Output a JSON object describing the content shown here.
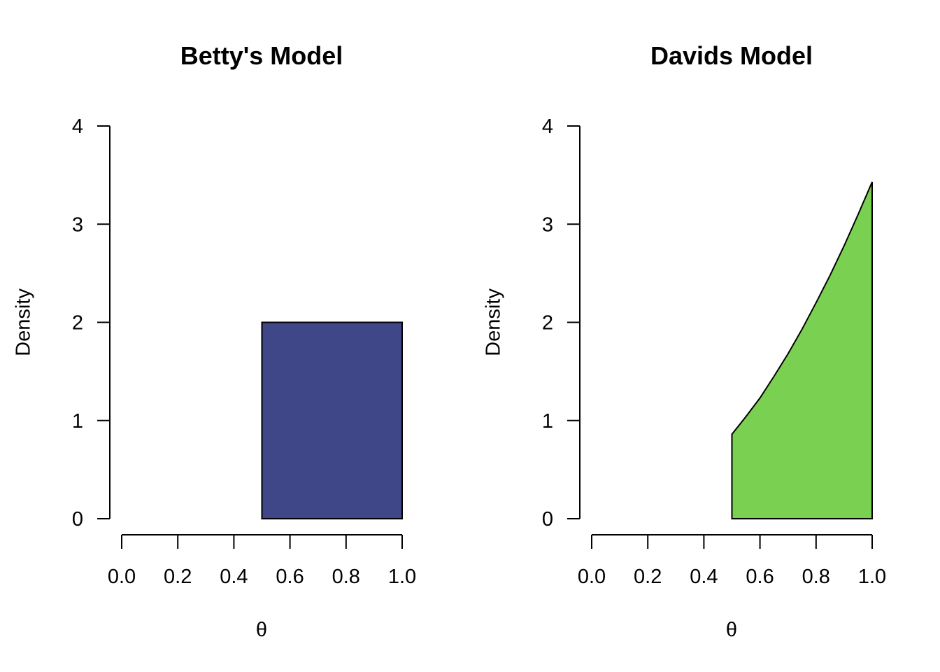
{
  "chart_data": [
    {
      "type": "area",
      "title": "Betty's Model",
      "xlabel": "θ",
      "ylabel": "Density",
      "xlim": [
        0,
        1
      ],
      "ylim": [
        0,
        4
      ],
      "x_ticks": [
        "0.0",
        "0.2",
        "0.4",
        "0.6",
        "0.8",
        "1.0"
      ],
      "y_ticks": [
        "0",
        "1",
        "2",
        "3",
        "4"
      ],
      "fill_color": "#404788",
      "x": [
        0.5,
        0.5,
        1.0,
        1.0
      ],
      "y": [
        0,
        2,
        2,
        0
      ],
      "grid": false
    },
    {
      "type": "area",
      "title": "Davids Model",
      "xlabel": "θ",
      "ylabel": "Density",
      "xlim": [
        0,
        1
      ],
      "ylim": [
        0,
        4
      ],
      "x_ticks": [
        "0.0",
        "0.2",
        "0.4",
        "0.6",
        "0.8",
        "1.0"
      ],
      "y_ticks": [
        "0",
        "1",
        "2",
        "3",
        "4"
      ],
      "fill_color": "#7AD151",
      "x": [
        0.5,
        0.55,
        0.6,
        0.65,
        0.7,
        0.75,
        0.8,
        0.85,
        0.9,
        0.95,
        1.0
      ],
      "y": [
        0.86,
        1.04,
        1.23,
        1.45,
        1.68,
        1.93,
        2.2,
        2.48,
        2.78,
        3.1,
        3.43
      ],
      "grid": false
    }
  ]
}
